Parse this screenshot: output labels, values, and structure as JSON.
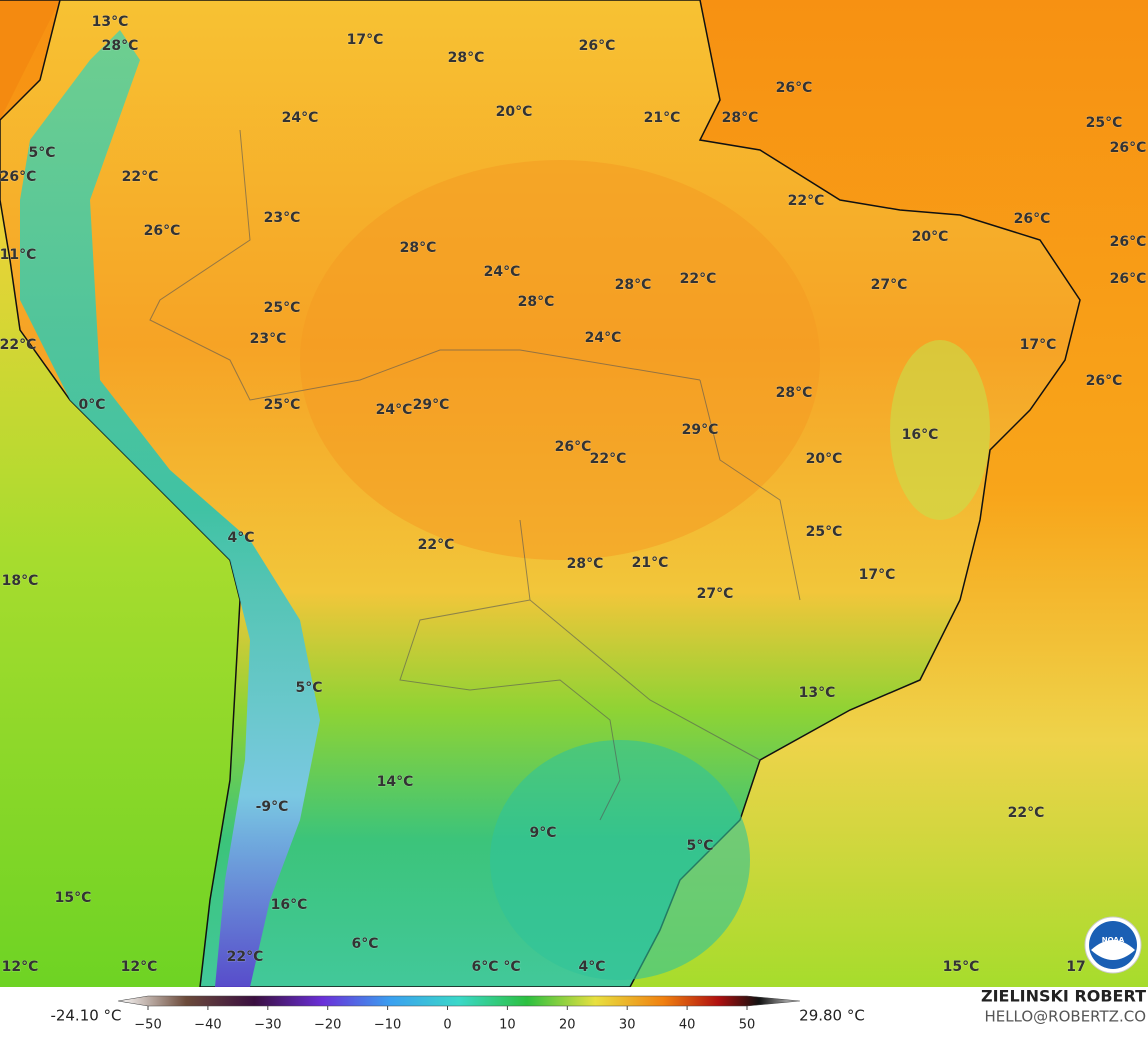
{
  "map": {
    "labels": [
      "13°C",
      "28°C",
      "17°C",
      "28°C",
      "26°C",
      "26°C",
      "20°C",
      "21°C",
      "28°C",
      "24°C",
      "25°C",
      "26°C",
      "5°C",
      "26°C",
      "22°C",
      "22°C",
      "23°C",
      "26°C",
      "26°C",
      "20°C",
      "26°C",
      "28°C",
      "11°C",
      "24°C",
      "22°C",
      "26°C",
      "28°C",
      "27°C",
      "25°C",
      "28°C",
      "23°C",
      "24°C",
      "17°C",
      "22°C",
      "26°C",
      "28°C",
      "0°C",
      "25°C",
      "24°C",
      "29°C",
      "16°C",
      "29°C",
      "26°C",
      "22°C",
      "20°C",
      "25°C",
      "4°C",
      "22°C",
      "28°C",
      "21°C",
      "17°C",
      "18°C",
      "27°C",
      "13°C",
      "5°C",
      "14°C",
      "-9°C",
      "9°C",
      "22°C",
      "5°C",
      "15°C",
      "16°C",
      "6°C",
      "22°C",
      "12°C",
      "12°C",
      "6°C",
      "°C",
      "4°C",
      "15°C",
      "17"
    ]
  },
  "colorbar": {
    "min_label": "-24.10 °C",
    "max_label": "29.80 °C",
    "ticks": [
      "−50",
      "−40",
      "−30",
      "−20",
      "−10",
      "0",
      "10",
      "20",
      "30",
      "40",
      "50"
    ]
  },
  "credit": {
    "name": "ZIELINSKI ROBERT",
    "contact": "HELLO@ROBERTZ.CO",
    "logo": "NOAA"
  }
}
